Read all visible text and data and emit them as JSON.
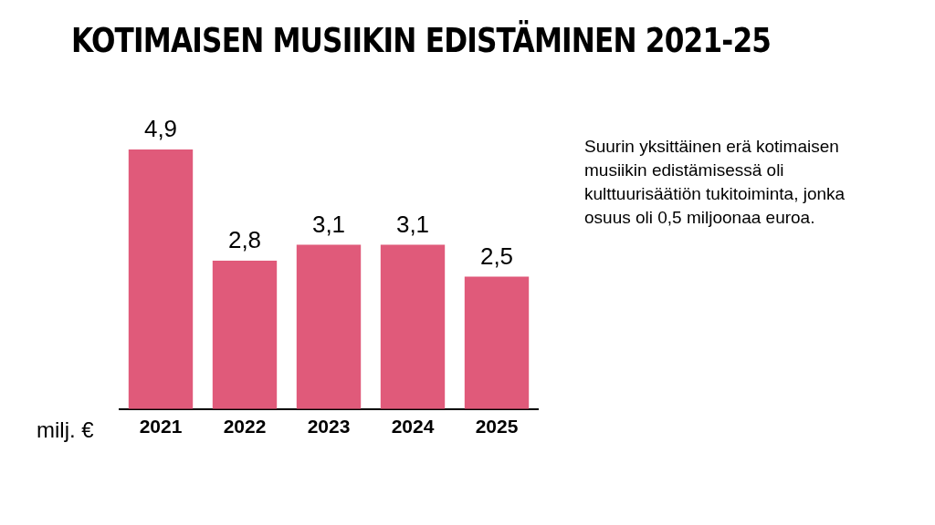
{
  "chart_data": {
    "type": "bar",
    "title": "KOTIMAISEN MUSIIKIN EDISTÄMINEN 2021-25",
    "ylabel": "milj. €",
    "categories": [
      "2021",
      "2022",
      "2023",
      "2024",
      "2025"
    ],
    "values": [
      4.9,
      2.8,
      3.1,
      3.1,
      2.5
    ],
    "value_labels": [
      "4,9",
      "2,8",
      "3,1",
      "3,1",
      "2,5"
    ],
    "color": "#e05a7a",
    "grid": false,
    "legend": false,
    "annotations": [
      "Suurin yksittäinen erä kotimaisen musiikin edistämisessä oli kulttuurisäätiön tukitoiminta, jonka osuus oli 0,5 miljoonaa euroa."
    ]
  }
}
